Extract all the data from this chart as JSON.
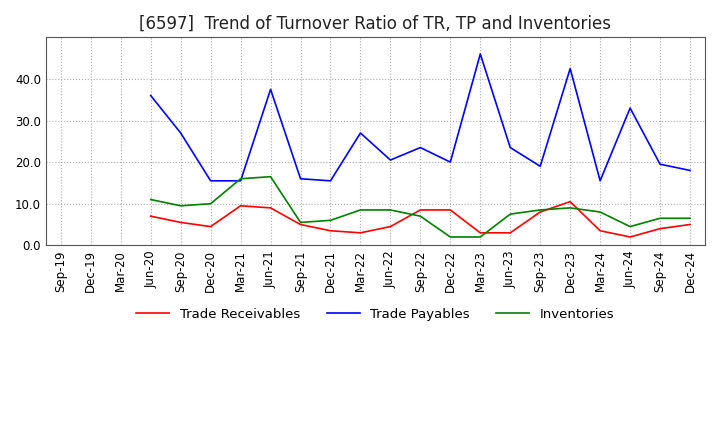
{
  "title": "[6597]  Trend of Turnover Ratio of TR, TP and Inventories",
  "ylim": [
    0,
    50
  ],
  "yticks": [
    0.0,
    10.0,
    20.0,
    30.0,
    40.0
  ],
  "x_labels": [
    "Sep-19",
    "Dec-19",
    "Mar-20",
    "Jun-20",
    "Sep-20",
    "Dec-20",
    "Mar-21",
    "Jun-21",
    "Sep-21",
    "Dec-21",
    "Mar-22",
    "Jun-22",
    "Sep-22",
    "Dec-22",
    "Mar-23",
    "Jun-23",
    "Sep-23",
    "Dec-23",
    "Mar-24",
    "Jun-24",
    "Sep-24",
    "Dec-24"
  ],
  "trade_receivables": [
    null,
    null,
    null,
    7.0,
    5.5,
    4.5,
    9.5,
    9.0,
    5.0,
    3.5,
    3.0,
    4.5,
    8.5,
    8.5,
    3.0,
    3.0,
    8.0,
    10.5,
    3.5,
    2.0,
    4.0,
    5.0
  ],
  "trade_payables": [
    null,
    null,
    null,
    36.0,
    27.0,
    15.5,
    15.5,
    37.5,
    16.0,
    15.5,
    27.0,
    20.5,
    23.5,
    20.0,
    46.0,
    23.5,
    19.0,
    42.5,
    15.5,
    33.0,
    19.5,
    18.0
  ],
  "inventories": [
    null,
    null,
    null,
    11.0,
    9.5,
    10.0,
    16.0,
    16.5,
    5.5,
    6.0,
    8.5,
    8.5,
    7.0,
    2.0,
    2.0,
    7.5,
    8.5,
    9.0,
    8.0,
    4.5,
    6.5,
    6.5
  ],
  "tr_color": "#ff0000",
  "tp_color": "#0000ff",
  "inv_color": "#008000",
  "bg_color": "#ffffff",
  "grid_color": "#aaaaaa",
  "title_fontsize": 12,
  "tick_fontsize": 8.5,
  "legend_fontsize": 9.5
}
